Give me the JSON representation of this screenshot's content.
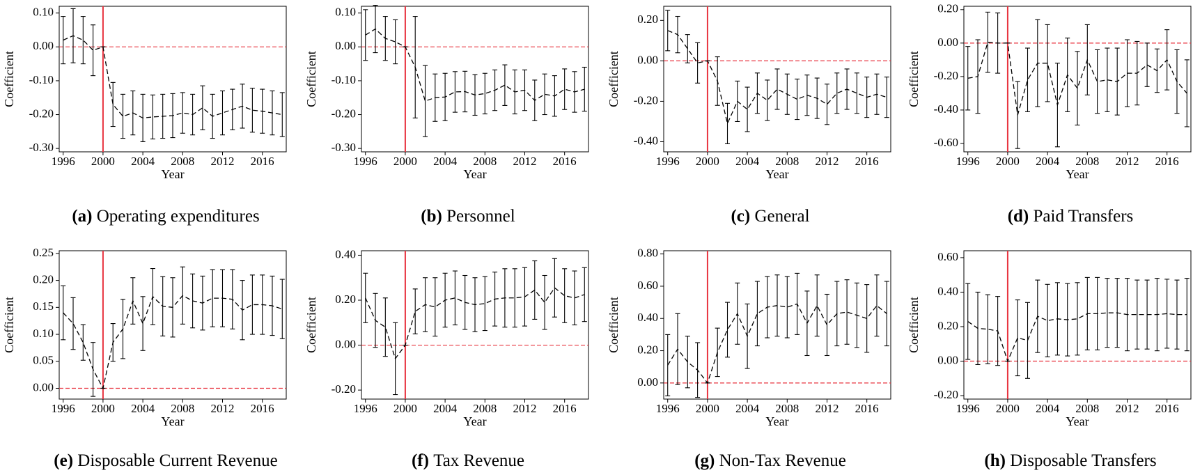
{
  "chart_data": [
    {
      "type": "line",
      "label": "(a)",
      "caption": "Operating expenditures",
      "ylabel": "Coefficient",
      "xlabel": "Year",
      "x": [
        1996,
        1997,
        1998,
        1999,
        2000,
        2001,
        2002,
        2003,
        2004,
        2005,
        2006,
        2007,
        2008,
        2009,
        2010,
        2011,
        2012,
        2013,
        2014,
        2015,
        2016,
        2017,
        2018
      ],
      "values": [
        0.02,
        0.033,
        0.02,
        -0.01,
        0,
        -0.17,
        -0.205,
        -0.195,
        -0.21,
        -0.207,
        -0.205,
        -0.203,
        -0.195,
        -0.2,
        -0.18,
        -0.205,
        -0.195,
        -0.185,
        -0.175,
        -0.187,
        -0.19,
        -0.195,
        -0.2
      ],
      "errors": [
        0.07,
        0.08,
        0.07,
        0.075,
        0,
        0.065,
        0.065,
        0.065,
        0.07,
        0.065,
        0.065,
        0.065,
        0.06,
        0.06,
        0.065,
        0.065,
        0.065,
        0.06,
        0.065,
        0.065,
        0.065,
        0.065,
        0.065
      ],
      "xlim": [
        1995.6,
        2018.4
      ],
      "xticks": [
        1996,
        2000,
        2004,
        2008,
        2012,
        2016
      ],
      "ylim": [
        -0.31,
        0.12
      ],
      "yticks": [
        {
          "value": 0.1,
          "label": "0.10"
        },
        {
          "value": 0,
          "label": "0.00"
        },
        {
          "value": -0.1,
          "label": "-0.10"
        },
        {
          "value": -0.2,
          "label": "-0.20"
        },
        {
          "value": -0.3,
          "label": "-0.30"
        }
      ],
      "vline": 2000,
      "hline": 0,
      "color": "#000000",
      "ref_color": "#e8333f"
    },
    {
      "type": "line",
      "label": "(b)",
      "caption": "Personnel",
      "ylabel": "Coefficient",
      "xlabel": "Year",
      "x": [
        1996,
        1997,
        1998,
        1999,
        2000,
        2001,
        2002,
        2003,
        2004,
        2005,
        2006,
        2007,
        2008,
        2009,
        2010,
        2011,
        2012,
        2013,
        2014,
        2015,
        2016,
        2017,
        2018
      ],
      "values": [
        0.035,
        0.053,
        0.025,
        0.015,
        0,
        -0.06,
        -0.16,
        -0.15,
        -0.148,
        -0.133,
        -0.132,
        -0.142,
        -0.138,
        -0.128,
        -0.113,
        -0.133,
        -0.128,
        -0.158,
        -0.14,
        -0.145,
        -0.125,
        -0.133,
        -0.125
      ],
      "errors": [
        0.075,
        0.07,
        0.065,
        0.065,
        0,
        0.15,
        0.105,
        0.07,
        0.07,
        0.06,
        0.06,
        0.06,
        0.06,
        0.06,
        0.06,
        0.065,
        0.06,
        0.06,
        0.06,
        0.06,
        0.06,
        0.06,
        0.065
      ],
      "xlim": [
        1995.6,
        2018.4
      ],
      "xticks": [
        1996,
        2000,
        2004,
        2008,
        2012,
        2016
      ],
      "ylim": [
        -0.31,
        0.12
      ],
      "yticks": [
        {
          "value": 0.1,
          "label": "0.10"
        },
        {
          "value": 0,
          "label": "0.00"
        },
        {
          "value": -0.1,
          "label": "-0.10"
        },
        {
          "value": -0.2,
          "label": "-0.20"
        },
        {
          "value": -0.3,
          "label": "-0.30"
        }
      ],
      "vline": 2000,
      "hline": 0,
      "color": "#000000",
      "ref_color": "#e8333f"
    },
    {
      "type": "line",
      "label": "(c)",
      "caption": "General",
      "ylabel": "Coefficient",
      "xlabel": "Year",
      "x": [
        1996,
        1997,
        1998,
        1999,
        2000,
        2001,
        2002,
        2003,
        2004,
        2005,
        2006,
        2007,
        2008,
        2009,
        2010,
        2011,
        2012,
        2013,
        2014,
        2015,
        2016,
        2017,
        2018
      ],
      "values": [
        0.15,
        0.13,
        0.06,
        -0.01,
        0,
        -0.1,
        -0.31,
        -0.2,
        -0.24,
        -0.16,
        -0.195,
        -0.14,
        -0.165,
        -0.19,
        -0.17,
        -0.185,
        -0.215,
        -0.16,
        -0.14,
        -0.16,
        -0.18,
        -0.165,
        -0.18
      ],
      "errors": [
        0.1,
        0.09,
        0.07,
        0.1,
        0,
        0.12,
        0.1,
        0.1,
        0.11,
        0.1,
        0.1,
        0.1,
        0.1,
        0.1,
        0.1,
        0.1,
        0.1,
        0.1,
        0.1,
        0.1,
        0.1,
        0.1,
        0.1
      ],
      "xlim": [
        1995.6,
        2018.4
      ],
      "xticks": [
        1996,
        2000,
        2004,
        2008,
        2012,
        2016
      ],
      "ylim": [
        -0.45,
        0.27
      ],
      "yticks": [
        {
          "value": 0.2,
          "label": "0.20"
        },
        {
          "value": 0,
          "label": "0.00"
        },
        {
          "value": -0.2,
          "label": "-0.20"
        },
        {
          "value": -0.4,
          "label": "-0.40"
        }
      ],
      "vline": 2000,
      "hline": 0,
      "color": "#000000",
      "ref_color": "#e8333f"
    },
    {
      "type": "line",
      "label": "(d)",
      "caption": "Paid Transfers",
      "ylabel": "Coefficient",
      "xlabel": "Year",
      "x": [
        1996,
        1997,
        1998,
        1999,
        2000,
        2001,
        2002,
        2003,
        2004,
        2005,
        2006,
        2007,
        2008,
        2009,
        2010,
        2011,
        2012,
        2013,
        2014,
        2015,
        2016,
        2017,
        2018
      ],
      "values": [
        -0.21,
        -0.2,
        0.005,
        0,
        0,
        -0.43,
        -0.22,
        -0.12,
        -0.12,
        -0.37,
        -0.19,
        -0.27,
        -0.1,
        -0.23,
        -0.22,
        -0.23,
        -0.18,
        -0.18,
        -0.13,
        -0.165,
        -0.1,
        -0.23,
        -0.3
      ],
      "errors": [
        0.19,
        0.22,
        0.18,
        0.18,
        0,
        0.2,
        0.19,
        0.26,
        0.23,
        0.25,
        0.22,
        0.22,
        0.21,
        0.19,
        0.19,
        0.2,
        0.2,
        0.19,
        0.13,
        0.13,
        0.18,
        0.19,
        0.2
      ],
      "xlim": [
        1995.6,
        2018.4
      ],
      "xticks": [
        1996,
        2000,
        2004,
        2008,
        2012,
        2016
      ],
      "ylim": [
        -0.65,
        0.22
      ],
      "yticks": [
        {
          "value": 0.2,
          "label": "0.20"
        },
        {
          "value": 0,
          "label": "0.00"
        },
        {
          "value": -0.2,
          "label": "-0.20"
        },
        {
          "value": -0.4,
          "label": "-0.40"
        },
        {
          "value": -0.6,
          "label": "-0.60"
        }
      ],
      "vline": 2000,
      "hline": 0,
      "color": "#000000",
      "ref_color": "#e8333f"
    },
    {
      "type": "line",
      "label": "(e)",
      "caption": "Disposable Current Revenue",
      "ylabel": "Coefficient",
      "xlabel": "Year",
      "x": [
        1996,
        1997,
        1998,
        1999,
        2000,
        2001,
        2002,
        2003,
        2004,
        2005,
        2006,
        2007,
        2008,
        2009,
        2010,
        2011,
        2012,
        2013,
        2014,
        2015,
        2016,
        2017,
        2018
      ],
      "values": [
        0.14,
        0.12,
        0.085,
        0.035,
        0,
        0.085,
        0.11,
        0.162,
        0.12,
        0.17,
        0.152,
        0.15,
        0.172,
        0.162,
        0.158,
        0.167,
        0.167,
        0.165,
        0.145,
        0.155,
        0.155,
        0.153,
        0.147
      ],
      "errors": [
        0.05,
        0.048,
        0.033,
        0.05,
        0,
        0.035,
        0.055,
        0.043,
        0.05,
        0.052,
        0.055,
        0.055,
        0.053,
        0.05,
        0.05,
        0.053,
        0.053,
        0.055,
        0.055,
        0.055,
        0.055,
        0.055,
        0.055
      ],
      "xlim": [
        1995.6,
        2018.4
      ],
      "xticks": [
        1996,
        2000,
        2004,
        2008,
        2012,
        2016
      ],
      "ylim": [
        -0.02,
        0.255
      ],
      "yticks": [
        {
          "value": 0.25,
          "label": "0.25"
        },
        {
          "value": 0.2,
          "label": "0.20"
        },
        {
          "value": 0.15,
          "label": "0.15"
        },
        {
          "value": 0.1,
          "label": "0.10"
        },
        {
          "value": 0.05,
          "label": "0.05"
        },
        {
          "value": 0,
          "label": "0.00"
        }
      ],
      "vline": 2000,
      "hline": 0,
      "color": "#000000",
      "ref_color": "#e8333f"
    },
    {
      "type": "line",
      "label": "(f)",
      "caption": "Tax Revenue",
      "ylabel": "Coefficient",
      "xlabel": "Year",
      "x": [
        1996,
        1997,
        1998,
        1999,
        2000,
        2001,
        2002,
        2003,
        2004,
        2005,
        2006,
        2007,
        2008,
        2009,
        2010,
        2011,
        2012,
        2013,
        2014,
        2015,
        2016,
        2017,
        2018
      ],
      "values": [
        0.21,
        0.11,
        0.08,
        -0.06,
        0,
        0.15,
        0.18,
        0.17,
        0.2,
        0.21,
        0.19,
        0.18,
        0.185,
        0.205,
        0.21,
        0.21,
        0.215,
        0.245,
        0.19,
        0.255,
        0.22,
        0.21,
        0.225
      ],
      "errors": [
        0.11,
        0.12,
        0.13,
        0.16,
        0,
        0.1,
        0.12,
        0.13,
        0.12,
        0.12,
        0.12,
        0.12,
        0.12,
        0.12,
        0.13,
        0.13,
        0.13,
        0.13,
        0.12,
        0.13,
        0.12,
        0.12,
        0.12
      ],
      "xlim": [
        1995.6,
        2018.4
      ],
      "xticks": [
        1996,
        2000,
        2004,
        2008,
        2012,
        2016
      ],
      "ylim": [
        -0.24,
        0.42
      ],
      "yticks": [
        {
          "value": 0.4,
          "label": "0.40"
        },
        {
          "value": 0.2,
          "label": "0.20"
        },
        {
          "value": 0,
          "label": "0.00"
        },
        {
          "value": -0.2,
          "label": "-0.20"
        }
      ],
      "vline": 2000,
      "hline": 0,
      "color": "#000000",
      "ref_color": "#e8333f"
    },
    {
      "type": "line",
      "label": "(g)",
      "caption": "Non-Tax Revenue",
      "ylabel": "Coefficient",
      "xlabel": "Year",
      "x": [
        1996,
        1997,
        1998,
        1999,
        2000,
        2001,
        2002,
        2003,
        2004,
        2005,
        2006,
        2007,
        2008,
        2009,
        2010,
        2011,
        2012,
        2013,
        2014,
        2015,
        2016,
        2017,
        2018
      ],
      "values": [
        0.11,
        0.21,
        0.13,
        0.08,
        0,
        0.19,
        0.33,
        0.43,
        0.29,
        0.43,
        0.47,
        0.48,
        0.47,
        0.49,
        0.37,
        0.48,
        0.36,
        0.43,
        0.44,
        0.42,
        0.4,
        0.48,
        0.43
      ],
      "errors": [
        0.19,
        0.22,
        0.16,
        0.17,
        0,
        0.15,
        0.17,
        0.19,
        0.2,
        0.2,
        0.19,
        0.19,
        0.19,
        0.19,
        0.2,
        0.19,
        0.19,
        0.2,
        0.2,
        0.2,
        0.21,
        0.19,
        0.2
      ],
      "xlim": [
        1995.6,
        2018.4
      ],
      "xticks": [
        1996,
        2000,
        2004,
        2008,
        2012,
        2016
      ],
      "ylim": [
        -0.1,
        0.82
      ],
      "yticks": [
        {
          "value": 0.8,
          "label": "0.80"
        },
        {
          "value": 0.6,
          "label": "0.60"
        },
        {
          "value": 0.4,
          "label": "0.40"
        },
        {
          "value": 0.2,
          "label": "0.20"
        },
        {
          "value": 0,
          "label": "0.00"
        }
      ],
      "vline": 2000,
      "hline": 0,
      "color": "#000000",
      "ref_color": "#e8333f"
    },
    {
      "type": "line",
      "label": "(h)",
      "caption": "Disposable Transfers",
      "ylabel": "Coefficient",
      "xlabel": "Year",
      "x": [
        1996,
        1997,
        1998,
        1999,
        2000,
        2001,
        2002,
        2003,
        2004,
        2005,
        2006,
        2007,
        2008,
        2009,
        2010,
        2011,
        2012,
        2013,
        2014,
        2015,
        2016,
        2017,
        2018
      ],
      "values": [
        0.23,
        0.19,
        0.185,
        0.175,
        0,
        0.135,
        0.12,
        0.26,
        0.235,
        0.245,
        0.24,
        0.245,
        0.275,
        0.275,
        0.28,
        0.28,
        0.27,
        0.27,
        0.27,
        0.27,
        0.275,
        0.27,
        0.27
      ],
      "errors": [
        0.22,
        0.21,
        0.2,
        0.2,
        0,
        0.22,
        0.22,
        0.21,
        0.21,
        0.21,
        0.21,
        0.21,
        0.21,
        0.21,
        0.2,
        0.2,
        0.21,
        0.2,
        0.2,
        0.21,
        0.2,
        0.2,
        0.21
      ],
      "xlim": [
        1995.6,
        2018.4
      ],
      "xticks": [
        1996,
        2000,
        2004,
        2008,
        2012,
        2016
      ],
      "ylim": [
        -0.22,
        0.64
      ],
      "yticks": [
        {
          "value": 0.6,
          "label": "0.60"
        },
        {
          "value": 0.4,
          "label": "0.40"
        },
        {
          "value": 0.2,
          "label": "0.20"
        },
        {
          "value": 0,
          "label": "0.00"
        },
        {
          "value": -0.2,
          "label": "-0.20"
        }
      ],
      "vline": 2000,
      "hline": 0,
      "color": "#000000",
      "ref_color": "#e8333f"
    }
  ]
}
